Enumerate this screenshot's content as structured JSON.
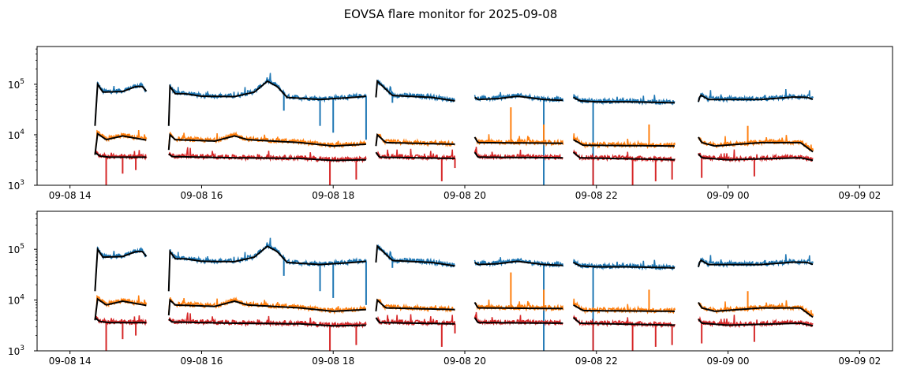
{
  "chart_data": {
    "type": "line",
    "title": "EOVSA flare monitor for 2025-09-08",
    "panels": 2,
    "yscale": "log",
    "ylim": [
      1000,
      560000
    ],
    "xlim_hours": [
      13.5,
      26.5
    ],
    "xlabel": "",
    "ylabel": "",
    "grid": false,
    "x_ticks": [
      {
        "hour": 14,
        "label": "09-08 14"
      },
      {
        "hour": 16,
        "label": "09-08 16"
      },
      {
        "hour": 18,
        "label": "09-08 18"
      },
      {
        "hour": 20,
        "label": "09-08 20"
      },
      {
        "hour": 22,
        "label": "09-08 22"
      },
      {
        "hour": 24,
        "label": "09-09 00"
      },
      {
        "hour": 26,
        "label": "09-09 02"
      }
    ],
    "y_ticks": [
      {
        "value": 1000,
        "base": "10",
        "exp": "3"
      },
      {
        "value": 10000,
        "base": "10",
        "exp": "4"
      },
      {
        "value": 100000,
        "base": "10",
        "exp": "5"
      }
    ],
    "series": [
      {
        "name": "blue",
        "color": "#1f77b4",
        "segments": [
          [
            [
              14.38,
              15000
            ],
            [
              14.42,
              100000
            ],
            [
              14.5,
              70000
            ],
            [
              14.8,
              72000
            ],
            [
              15.0,
              90000
            ],
            [
              15.1,
              90000
            ],
            [
              15.17,
              70000
            ]
          ],
          [
            [
              15.5,
              15000
            ],
            [
              15.52,
              90000
            ],
            [
              15.6,
              65000
            ],
            [
              15.75,
              65000
            ],
            [
              16.0,
              58000
            ],
            [
              16.5,
              57000
            ],
            [
              16.8,
              70000
            ],
            [
              17.0,
              115000
            ],
            [
              17.15,
              90000
            ],
            [
              17.3,
              55000
            ],
            [
              17.8,
              50000
            ],
            [
              18.3,
              55000
            ],
            [
              18.5,
              58000
            ]
          ],
          [
            [
              18.65,
              55000
            ],
            [
              18.67,
              115000
            ],
            [
              18.9,
              60000
            ],
            [
              19.5,
              55000
            ],
            [
              19.85,
              47000
            ]
          ],
          [
            [
              20.15,
              55000
            ],
            [
              20.2,
              50000
            ],
            [
              20.5,
              52000
            ],
            [
              20.8,
              58000
            ],
            [
              21.2,
              50000
            ],
            [
              21.5,
              48000
            ]
          ],
          [
            [
              21.65,
              55000
            ],
            [
              21.75,
              47000
            ],
            [
              22.0,
              45000
            ],
            [
              22.5,
              45000
            ],
            [
              23.2,
              43000
            ]
          ],
          [
            [
              23.55,
              45000
            ],
            [
              23.58,
              62000
            ],
            [
              23.7,
              50000
            ],
            [
              24.5,
              50000
            ],
            [
              25.0,
              56000
            ],
            [
              25.2,
              55000
            ],
            [
              25.3,
              50000
            ]
          ]
        ],
        "spikes": [
          [
            17.25,
            30000
          ],
          [
            17.8,
            15000
          ],
          [
            18.0,
            11000
          ],
          [
            18.5,
            8000
          ],
          [
            18.9,
            43000
          ],
          [
            21.2,
            800
          ],
          [
            21.95,
            800
          ]
        ]
      },
      {
        "name": "orange",
        "color": "#ff7f0e",
        "segments": [
          [
            [
              14.38,
              4000
            ],
            [
              14.42,
              10500
            ],
            [
              14.55,
              8000
            ],
            [
              14.8,
              9500
            ],
            [
              15.17,
              7800
            ]
          ],
          [
            [
              15.5,
              5000
            ],
            [
              15.52,
              10000
            ],
            [
              15.6,
              8000
            ],
            [
              16.2,
              7500
            ],
            [
              16.5,
              9500
            ],
            [
              16.7,
              8000
            ],
            [
              17.5,
              7000
            ],
            [
              18.0,
              6000
            ],
            [
              18.5,
              6500
            ]
          ],
          [
            [
              18.65,
              6000
            ],
            [
              18.67,
              10000
            ],
            [
              18.8,
              7000
            ],
            [
              19.85,
              6500
            ]
          ],
          [
            [
              20.15,
              9000
            ],
            [
              20.2,
              7000
            ],
            [
              21.5,
              6800
            ]
          ],
          [
            [
              21.65,
              8000
            ],
            [
              21.8,
              6200
            ],
            [
              23.2,
              6000
            ]
          ],
          [
            [
              23.55,
              9000
            ],
            [
              23.6,
              7000
            ],
            [
              23.8,
              6000
            ],
            [
              24.5,
              7000
            ],
            [
              25.1,
              7000
            ],
            [
              25.3,
              4500
            ]
          ]
        ],
        "spikes": [
          [
            20.7,
            35000
          ],
          [
            21.2,
            16000
          ],
          [
            22.8,
            16000
          ],
          [
            24.3,
            15000
          ]
        ]
      },
      {
        "name": "red",
        "color": "#d62728",
        "segments": [
          [
            [
              14.38,
              4500
            ],
            [
              14.45,
              3800
            ],
            [
              14.6,
              3600
            ],
            [
              15.17,
              3600
            ]
          ],
          [
            [
              15.5,
              4200
            ],
            [
              15.55,
              3700
            ],
            [
              16.5,
              3500
            ],
            [
              17.5,
              3400
            ],
            [
              18.0,
              3100
            ],
            [
              18.5,
              3200
            ]
          ],
          [
            [
              18.65,
              4500
            ],
            [
              18.7,
              3600
            ],
            [
              19.85,
              3400
            ]
          ],
          [
            [
              20.15,
              4500
            ],
            [
              20.2,
              3600
            ],
            [
              21.5,
              3500
            ]
          ],
          [
            [
              21.65,
              4500
            ],
            [
              21.75,
              3500
            ],
            [
              23.2,
              3200
            ]
          ],
          [
            [
              23.55,
              4200
            ],
            [
              23.6,
              3500
            ],
            [
              24.0,
              3200
            ],
            [
              25.1,
              3500
            ],
            [
              25.3,
              3100
            ]
          ]
        ],
        "spikes": [
          [
            14.55,
            800
          ],
          [
            14.8,
            1700
          ],
          [
            15.0,
            2000
          ],
          [
            17.95,
            800
          ],
          [
            18.35,
            1300
          ],
          [
            19.65,
            1200
          ],
          [
            19.85,
            2200
          ],
          [
            21.95,
            800
          ],
          [
            22.55,
            900
          ],
          [
            22.9,
            1200
          ],
          [
            23.15,
            1300
          ],
          [
            23.6,
            1400
          ],
          [
            24.4,
            1500
          ]
        ]
      }
    ],
    "smooth_color": "#000000"
  }
}
